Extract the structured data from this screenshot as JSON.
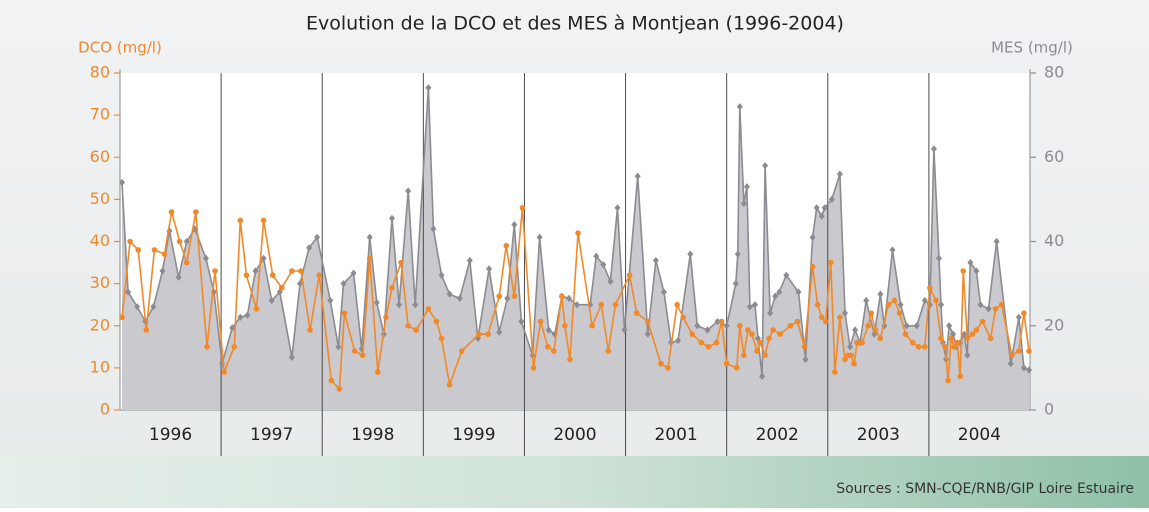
{
  "chart_data": {
    "type": "line",
    "title": "Evolution de la DCO et des MES à Montjean (1996-2004)",
    "ylabel": "DCO (mg/l)",
    "y2label": "MES (mg/l)",
    "source": "Sources : SMN-CQE/RNB/GIP Loire Estuaire",
    "categories": [
      "1996",
      "1997",
      "1998",
      "1999",
      "2000",
      "2001",
      "2002",
      "2003",
      "2004"
    ],
    "xlim": [
      1996,
      2005
    ],
    "ylim": [
      0,
      80
    ],
    "yticks": [
      0,
      10,
      20,
      30,
      40,
      50,
      60,
      70,
      80
    ],
    "y2lim": [
      0,
      80
    ],
    "y2ticks": [
      0,
      20,
      40,
      60,
      80
    ],
    "series": [
      {
        "name": "MES (mg/l)",
        "axis": "y2",
        "area": true,
        "marker": "diamond",
        "color": "#8b8b91",
        "fill": "#c9c9ce",
        "x": [
          1996.02,
          1996.08,
          1996.17,
          1996.25,
          1996.33,
          1996.42,
          1996.49,
          1996.58,
          1996.66,
          1996.74,
          1996.85,
          1996.93,
          1997.01,
          1997.11,
          1997.19,
          1997.26,
          1997.34,
          1997.42,
          1997.5,
          1997.58,
          1997.7,
          1997.78,
          1997.87,
          1997.95,
          1998.08,
          1998.16,
          1998.21,
          1998.31,
          1998.39,
          1998.47,
          1998.54,
          1998.61,
          1998.69,
          1998.76,
          1998.85,
          1998.92,
          1999.05,
          1999.1,
          1999.18,
          1999.26,
          1999.36,
          1999.46,
          1999.54,
          1999.65,
          1999.75,
          1999.83,
          1999.9,
          1999.97,
          2000.08,
          2000.15,
          2000.24,
          2000.3,
          2000.37,
          2000.44,
          2000.52,
          2000.65,
          2000.71,
          2000.78,
          2000.85,
          2000.92,
          2000.99,
          2001.12,
          2001.22,
          2001.3,
          2001.38,
          2001.45,
          2001.52,
          2001.64,
          2001.71,
          2001.81,
          2001.91,
          2002.0,
          2002.09,
          2002.11,
          2002.13,
          2002.17,
          2002.2,
          2002.23,
          2002.28,
          2002.31,
          2002.35,
          2002.38,
          2002.43,
          2002.48,
          2002.52,
          2002.59,
          2002.71,
          2002.78,
          2002.85,
          2002.89,
          2002.94,
          2002.97,
          2003.04,
          2003.12,
          2003.17,
          2003.22,
          2003.27,
          2003.32,
          2003.38,
          2003.46,
          2003.52,
          2003.56,
          2003.64,
          2003.72,
          2003.78,
          2003.88,
          2003.96,
          2004.01,
          2004.05,
          2004.1,
          2004.12,
          2004.14,
          2004.17,
          2004.2,
          2004.24,
          2004.27,
          2004.31,
          2004.35,
          2004.38,
          2004.41,
          2004.47,
          2004.51,
          2004.59,
          2004.67,
          2004.81,
          2004.89,
          2004.94,
          2004.99
        ],
        "values": [
          54,
          28,
          24.5,
          21,
          24.5,
          33,
          42.5,
          31.5,
          40,
          43,
          36,
          28,
          11,
          19.5,
          22,
          22.5,
          33,
          36,
          26,
          28,
          12.5,
          30,
          38.5,
          41,
          26,
          15,
          30,
          32.5,
          14.5,
          41,
          25.5,
          18,
          45.5,
          25,
          52,
          25,
          76.5,
          43,
          32,
          27.5,
          26.5,
          35.5,
          17,
          33.5,
          18.5,
          26.5,
          44,
          21,
          13,
          41,
          19,
          18,
          27,
          26.5,
          25,
          25,
          36.5,
          34.5,
          30.5,
          48,
          19,
          55.5,
          18,
          35.5,
          28,
          16,
          16.5,
          37,
          20,
          19,
          21,
          20,
          30,
          37,
          72,
          49,
          53,
          24.5,
          25,
          17,
          8,
          58,
          23,
          27,
          28,
          32,
          28,
          12,
          41,
          48,
          46,
          48,
          50,
          56,
          23,
          15,
          19,
          16,
          26,
          18,
          27.5,
          20,
          38,
          25,
          20,
          20,
          26,
          25,
          62,
          36,
          25,
          16,
          12,
          20,
          18,
          15,
          16,
          18,
          13,
          35,
          33,
          25,
          24,
          40,
          11,
          22,
          10,
          9.5
        ]
      },
      {
        "name": "DCO (mg/l)",
        "axis": "y",
        "marker": "circle",
        "color": "#f0892a",
        "x": [
          1996.02,
          1996.1,
          1996.18,
          1996.26,
          1996.34,
          1996.44,
          1996.51,
          1996.59,
          1996.66,
          1996.75,
          1996.86,
          1996.94,
          1997.03,
          1997.13,
          1997.19,
          1997.25,
          1997.35,
          1997.42,
          1997.51,
          1997.6,
          1997.7,
          1997.79,
          1997.88,
          1997.97,
          1998.09,
          1998.17,
          1998.22,
          1998.32,
          1998.4,
          1998.47,
          1998.55,
          1998.63,
          1998.69,
          1998.78,
          1998.85,
          1998.93,
          1999.05,
          1999.13,
          1999.18,
          1999.26,
          1999.38,
          1999.55,
          1999.64,
          1999.75,
          1999.82,
          1999.9,
          1999.98,
          2000.09,
          2000.16,
          2000.23,
          2000.29,
          2000.37,
          2000.4,
          2000.45,
          2000.53,
          2000.67,
          2000.76,
          2000.83,
          2000.9,
          2001.04,
          2001.11,
          2001.22,
          2001.35,
          2001.42,
          2001.51,
          2001.57,
          2001.66,
          2001.75,
          2001.82,
          2001.9,
          2001.95,
          2002.0,
          2002.1,
          2002.13,
          2002.17,
          2002.21,
          2002.25,
          2002.3,
          2002.33,
          2002.38,
          2002.42,
          2002.46,
          2002.53,
          2002.63,
          2002.7,
          2002.77,
          2002.85,
          2002.9,
          2002.94,
          2002.98,
          2003.03,
          2003.07,
          2003.12,
          2003.17,
          2003.2,
          2003.23,
          2003.26,
          2003.29,
          2003.34,
          2003.4,
          2003.43,
          2003.47,
          2003.52,
          2003.6,
          2003.66,
          2003.71,
          2003.77,
          2003.84,
          2003.9,
          2003.96,
          2004.01,
          2004.07,
          2004.12,
          2004.16,
          2004.19,
          2004.22,
          2004.25,
          2004.28,
          2004.31,
          2004.34,
          2004.38,
          2004.43,
          2004.47,
          2004.53,
          2004.61,
          2004.66,
          2004.72,
          2004.82,
          2004.89,
          2004.94,
          2004.99
        ],
        "values": [
          22,
          40,
          38,
          19,
          38,
          37,
          47,
          40,
          35,
          47,
          15,
          33,
          9,
          15,
          45,
          32,
          24,
          45,
          32,
          29,
          33,
          33,
          19,
          32,
          7,
          5,
          23,
          14,
          13,
          36,
          9,
          22,
          29,
          35,
          20,
          19,
          24,
          21,
          17,
          6,
          14,
          18,
          18,
          27,
          39,
          27,
          48,
          10,
          21,
          15,
          14,
          27,
          20,
          12,
          42,
          20,
          25,
          14,
          25,
          32,
          23,
          21,
          11,
          10,
          25,
          22,
          18,
          16,
          15,
          16,
          21,
          11,
          10,
          20,
          13,
          19,
          18,
          14,
          16,
          13,
          17,
          19,
          18,
          20,
          21,
          15,
          34,
          25,
          22,
          21,
          35,
          9,
          22,
          12,
          13,
          13,
          11,
          16,
          16,
          20,
          23,
          19,
          17,
          25,
          26,
          23,
          18,
          16,
          15,
          15,
          29,
          26,
          17,
          15,
          7,
          17,
          15,
          16,
          8,
          33,
          17,
          18,
          19,
          21,
          17,
          24,
          25,
          13,
          14,
          23,
          14
        ]
      }
    ]
  }
}
